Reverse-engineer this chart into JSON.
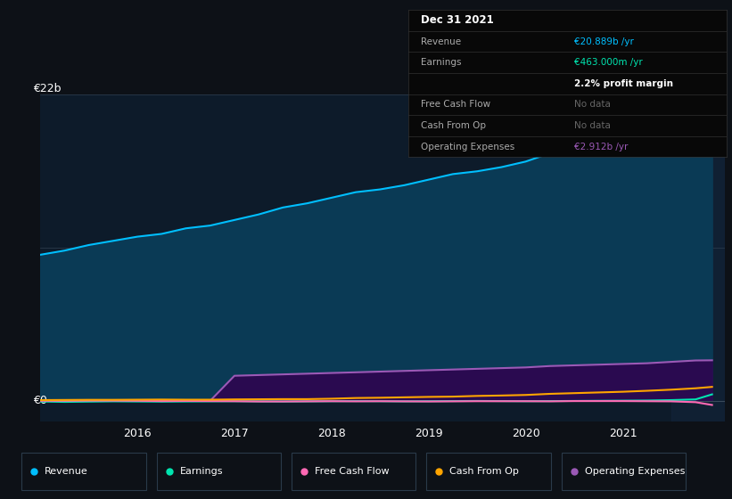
{
  "background_color": "#0d1117",
  "plot_bg_color": "#0d1b2a",
  "x_years": [
    2015.0,
    2015.25,
    2015.5,
    2015.75,
    2016.0,
    2016.25,
    2016.5,
    2016.75,
    2017.0,
    2017.25,
    2017.5,
    2017.75,
    2018.0,
    2018.25,
    2018.5,
    2018.75,
    2019.0,
    2019.25,
    2019.5,
    2019.75,
    2020.0,
    2020.25,
    2020.5,
    2020.75,
    2021.0,
    2021.25,
    2021.5,
    2021.75,
    2021.92
  ],
  "revenue": [
    10.5,
    10.8,
    11.2,
    11.5,
    11.8,
    12.0,
    12.4,
    12.6,
    13.0,
    13.4,
    13.9,
    14.2,
    14.6,
    15.0,
    15.2,
    15.5,
    15.9,
    16.3,
    16.5,
    16.8,
    17.2,
    17.8,
    18.2,
    18.8,
    19.2,
    19.8,
    20.3,
    20.7,
    20.889
  ],
  "earnings": [
    -0.05,
    -0.08,
    -0.06,
    -0.04,
    -0.05,
    -0.06,
    -0.05,
    -0.04,
    -0.03,
    -0.04,
    -0.05,
    -0.04,
    -0.03,
    -0.02,
    -0.03,
    -0.04,
    -0.03,
    -0.02,
    -0.01,
    -0.02,
    -0.03,
    -0.02,
    -0.01,
    0.0,
    0.01,
    0.02,
    0.05,
    0.1,
    0.463
  ],
  "free_cash_flow": [
    0.0,
    0.0,
    0.01,
    0.01,
    0.0,
    -0.02,
    -0.01,
    -0.02,
    -0.03,
    -0.05,
    -0.05,
    -0.04,
    -0.03,
    -0.04,
    -0.03,
    -0.04,
    -0.05,
    -0.04,
    -0.03,
    -0.03,
    -0.03,
    -0.04,
    -0.02,
    -0.02,
    -0.02,
    -0.03,
    -0.04,
    -0.1,
    -0.3
  ],
  "cash_from_op": [
    0.05,
    0.06,
    0.07,
    0.07,
    0.08,
    0.09,
    0.08,
    0.08,
    0.1,
    0.11,
    0.12,
    0.12,
    0.15,
    0.2,
    0.22,
    0.25,
    0.28,
    0.3,
    0.35,
    0.38,
    0.42,
    0.5,
    0.55,
    0.6,
    0.65,
    0.72,
    0.8,
    0.9,
    1.0
  ],
  "operating_expenses": [
    0.0,
    0.0,
    0.0,
    0.0,
    0.0,
    0.0,
    0.0,
    0.0,
    1.8,
    1.85,
    1.9,
    1.95,
    2.0,
    2.05,
    2.1,
    2.15,
    2.2,
    2.25,
    2.3,
    2.35,
    2.4,
    2.5,
    2.55,
    2.6,
    2.65,
    2.7,
    2.8,
    2.9,
    2.912
  ],
  "revenue_color": "#00bfff",
  "earnings_color": "#00e5b0",
  "free_cash_flow_color": "#ff69b4",
  "cash_from_op_color": "#ffa500",
  "operating_expenses_color": "#9b59b6",
  "ylim": [
    -1.5,
    22
  ],
  "y_label_22b": "€22b",
  "y_label_0": "€0",
  "x_ticks": [
    2016,
    2017,
    2018,
    2019,
    2020,
    2021
  ],
  "info_box": {
    "date": "Dec 31 2021",
    "revenue_val": "€20.889b /yr",
    "earnings_val": "€463.000m /yr",
    "margin_val": "2.2% profit margin",
    "fcf_val": "No data",
    "cash_op_val": "No data",
    "op_exp_val": "€2.912b /yr"
  },
  "legend_items": [
    "Revenue",
    "Earnings",
    "Free Cash Flow",
    "Cash From Op",
    "Operating Expenses"
  ],
  "legend_colors": [
    "#00bfff",
    "#00e5b0",
    "#ff69b4",
    "#ffa500",
    "#9b59b6"
  ]
}
